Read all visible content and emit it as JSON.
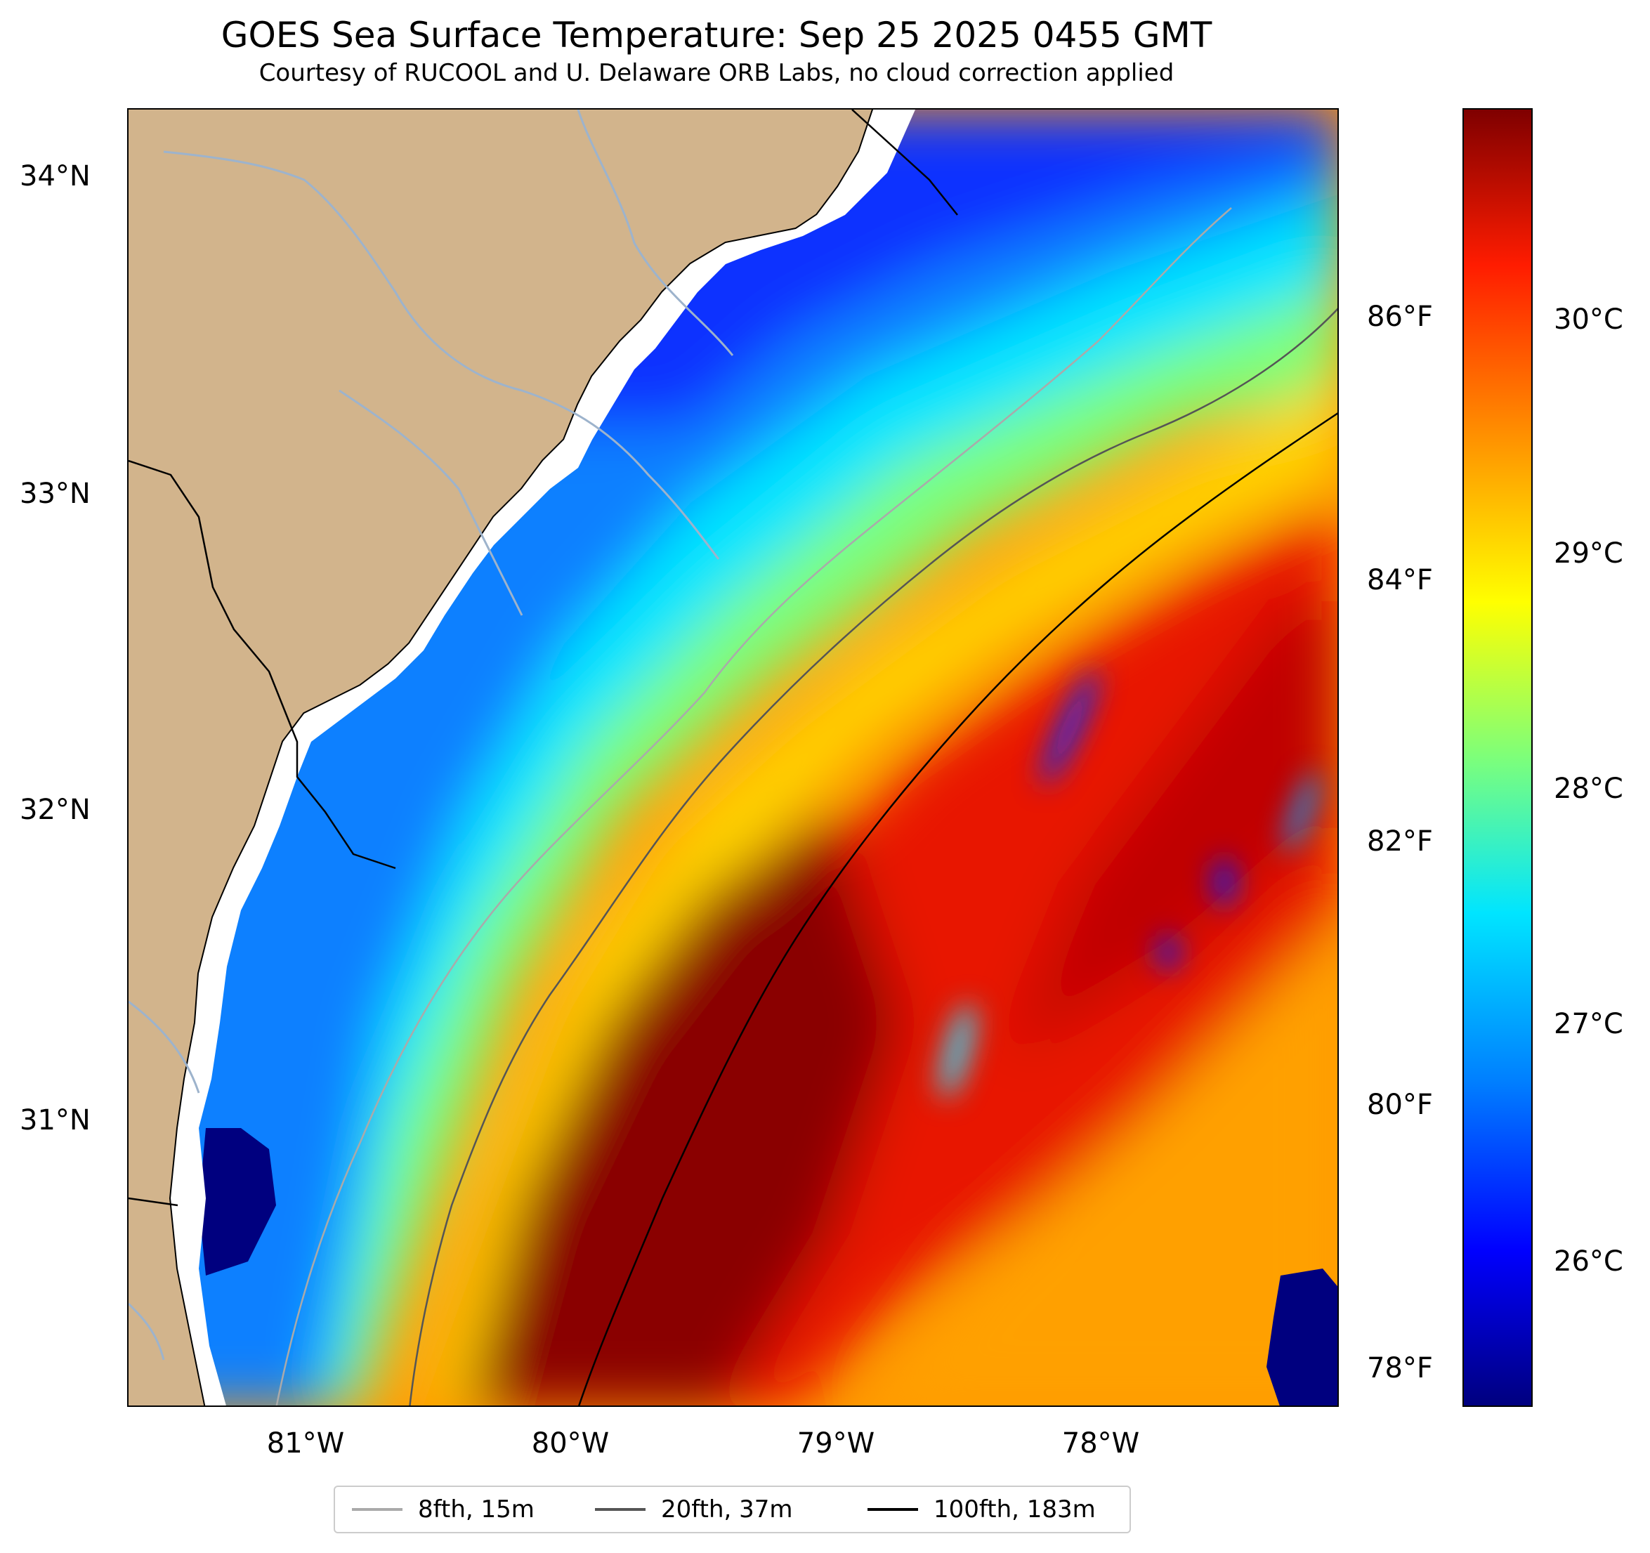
{
  "title": "GOES Sea Surface Temperature: Sep 25 2025 0455 GMT",
  "subtitle": "Courtesy of RUCOOL and U. Delaware ORB Labs, no cloud correction applied",
  "lat_labels": [
    "34°N",
    "33°N",
    "32°N",
    "31°N"
  ],
  "lon_labels": [
    "81°W",
    "80°W",
    "79°W",
    "78°W"
  ],
  "colorbar": {
    "celsius_labels": [
      "30°C",
      "29°C",
      "28°C",
      "27°C",
      "26°C"
    ],
    "fahrenheit_labels": [
      "86°F",
      "84°F",
      "82°F",
      "80°F",
      "78°F"
    ],
    "cmap": [
      "#00007f",
      "#0000ff",
      "#007fff",
      "#00e5ff",
      "#7dff7a",
      "#ffff00",
      "#ff8f00",
      "#ff1c00",
      "#7f0000"
    ]
  },
  "legend": {
    "items": [
      {
        "label": "8fth, 15m",
        "color": "#aaaaaa"
      },
      {
        "label": "20fth, 37m",
        "color": "#555555"
      },
      {
        "label": "100fth, 183m",
        "color": "#000000"
      }
    ]
  },
  "colors": {
    "land": "#d2b48c",
    "river": "#9db3cc",
    "coast": "#000000",
    "cloud_gap": "#ffffff"
  }
}
